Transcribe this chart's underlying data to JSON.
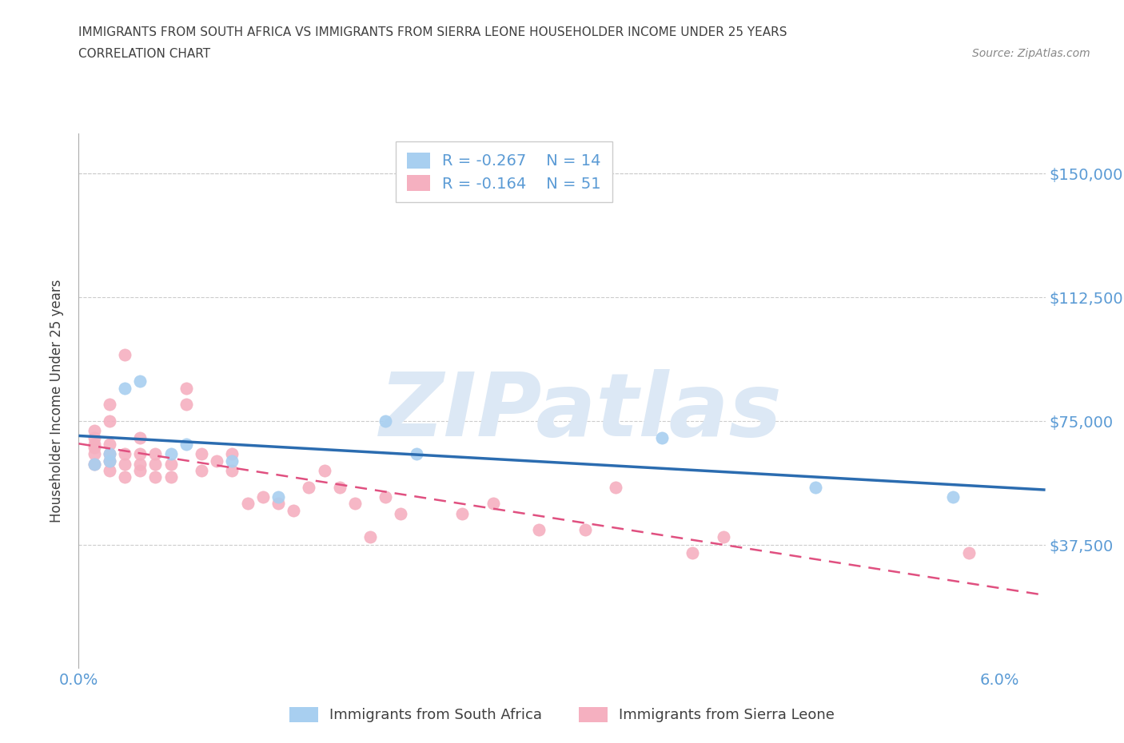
{
  "title_line1": "IMMIGRANTS FROM SOUTH AFRICA VS IMMIGRANTS FROM SIERRA LEONE HOUSEHOLDER INCOME UNDER 25 YEARS",
  "title_line2": "CORRELATION CHART",
  "source_text": "Source: ZipAtlas.com",
  "ylabel": "Householder Income Under 25 years",
  "xlim": [
    0.0,
    0.063
  ],
  "ylim": [
    0,
    162000
  ],
  "yticks": [
    37500,
    75000,
    112500,
    150000
  ],
  "ytick_labels": [
    "$37,500",
    "$75,000",
    "$112,500",
    "$150,000"
  ],
  "xtick_positions": [
    0.0,
    0.01,
    0.02,
    0.03,
    0.04,
    0.05,
    0.06
  ],
  "xtick_labels": [
    "0.0%",
    "",
    "",
    "",
    "",
    "",
    "6.0%"
  ],
  "watermark": "ZIPatlas",
  "series_south_africa": {
    "label": "Immigrants from South Africa",
    "color": "#a8cff0",
    "line_color": "#2b6cb0",
    "R": -0.267,
    "N": 14,
    "x": [
      0.001,
      0.002,
      0.002,
      0.003,
      0.004,
      0.006,
      0.007,
      0.01,
      0.013,
      0.02,
      0.022,
      0.038,
      0.048,
      0.057
    ],
    "y": [
      62000,
      63000,
      65000,
      85000,
      87000,
      65000,
      68000,
      63000,
      52000,
      75000,
      65000,
      70000,
      55000,
      52000
    ]
  },
  "series_sierra_leone": {
    "label": "Immigrants from Sierra Leone",
    "color": "#f5b0c0",
    "line_color": "#e05080",
    "R": -0.164,
    "N": 51,
    "x": [
      0.001,
      0.001,
      0.001,
      0.001,
      0.001,
      0.001,
      0.002,
      0.002,
      0.002,
      0.002,
      0.002,
      0.002,
      0.003,
      0.003,
      0.003,
      0.003,
      0.004,
      0.004,
      0.004,
      0.004,
      0.005,
      0.005,
      0.005,
      0.006,
      0.006,
      0.007,
      0.007,
      0.008,
      0.008,
      0.009,
      0.01,
      0.01,
      0.011,
      0.012,
      0.013,
      0.014,
      0.015,
      0.016,
      0.017,
      0.018,
      0.019,
      0.02,
      0.021,
      0.025,
      0.027,
      0.03,
      0.033,
      0.035,
      0.04,
      0.042,
      0.058
    ],
    "y": [
      62000,
      65000,
      67000,
      68000,
      70000,
      72000,
      60000,
      63000,
      65000,
      68000,
      75000,
      80000,
      58000,
      62000,
      65000,
      95000,
      60000,
      62000,
      65000,
      70000,
      58000,
      62000,
      65000,
      58000,
      62000,
      80000,
      85000,
      60000,
      65000,
      63000,
      60000,
      65000,
      50000,
      52000,
      50000,
      48000,
      55000,
      60000,
      55000,
      50000,
      40000,
      52000,
      47000,
      47000,
      50000,
      42000,
      42000,
      55000,
      35000,
      40000,
      35000
    ]
  },
  "background_color": "#ffffff",
  "grid_color": "#cccccc",
  "title_color": "#404040",
  "tick_label_color": "#5b9bd5",
  "legend_R_color": "#5b9bd5",
  "watermark_color": "#dce8f5"
}
